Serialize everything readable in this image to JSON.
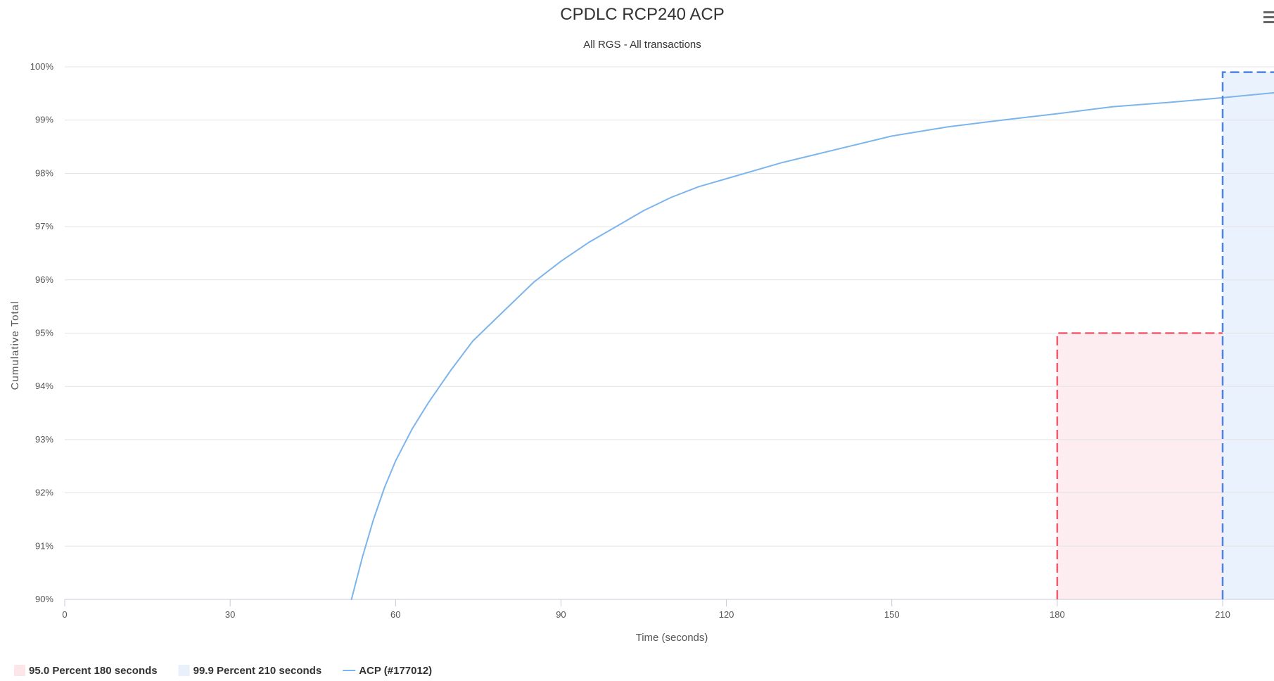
{
  "chart_data": {
    "type": "line",
    "title": "CPDLC RCP240 ACP",
    "subtitle": "All RGS - All transactions",
    "xlabel": "Time (seconds)",
    "ylabel": "Cumulative Total",
    "xlim": [
      0,
      220
    ],
    "ylim": [
      90,
      100
    ],
    "x_ticks": [
      0,
      30,
      60,
      90,
      120,
      150,
      180,
      210
    ],
    "x_tick_labels": [
      "0",
      "30",
      "60",
      "90",
      "120",
      "150",
      "180",
      "210"
    ],
    "y_ticks": [
      90,
      91,
      92,
      93,
      94,
      95,
      96,
      97,
      98,
      99,
      100
    ],
    "y_tick_labels": [
      "90%",
      "91%",
      "92%",
      "93%",
      "94%",
      "95%",
      "96%",
      "97%",
      "98%",
      "99%",
      "100%"
    ],
    "grid": "horizontal",
    "legend_position": "bottom-left",
    "series": [
      {
        "name": "ACP (#177012)",
        "color": "#7cb5ec",
        "x": [
          52,
          54,
          56,
          58,
          60,
          63,
          66,
          70,
          74,
          80,
          85,
          90,
          95,
          100,
          105,
          110,
          115,
          120,
          130,
          140,
          150,
          160,
          170,
          180,
          190,
          200,
          210,
          220
        ],
        "y": [
          90.0,
          90.8,
          91.5,
          92.1,
          92.6,
          93.2,
          93.7,
          94.3,
          94.85,
          95.45,
          95.95,
          96.35,
          96.7,
          97.0,
          97.3,
          97.55,
          97.75,
          97.9,
          98.2,
          98.45,
          98.7,
          98.87,
          99.0,
          99.12,
          99.25,
          99.33,
          99.42,
          99.52
        ]
      }
    ],
    "threshold_regions": [
      {
        "name": "95.0 Percent 180 seconds",
        "x_start": 180,
        "x_end": 210,
        "y_start": 90,
        "y_end": 95,
        "fill_color": "#fdecf0",
        "line_color": "#f45b6f",
        "legend_swatch": "#fde6ea"
      },
      {
        "name": "99.9 Percent 210 seconds",
        "x_start": 210,
        "x_end": 220,
        "y_start": 90,
        "y_end": 99.9,
        "fill_color": "#eaf2fd",
        "line_color": "#4a84e8",
        "legend_swatch": "#e8f0fb"
      }
    ]
  },
  "ui": {
    "menu_icon": "hamburger-menu-icon",
    "axis_line_color": "#c8c8d8"
  }
}
